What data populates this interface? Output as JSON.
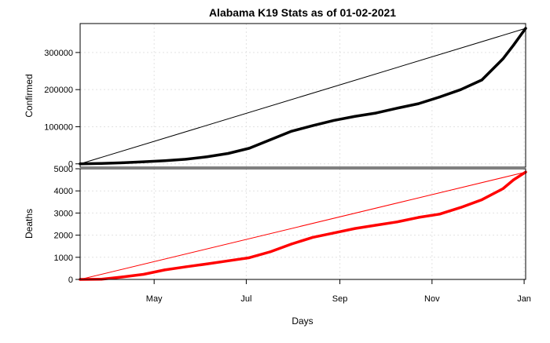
{
  "chart_data": {
    "title": "Alabama K19 Stats as of 01-02-2021",
    "xlabel": "Days",
    "x_tick_labels": [
      "May",
      "Jul",
      "Sep",
      "Nov",
      "Jan"
    ],
    "x_tick_dates": [
      "2020-05-01",
      "2020-07-01",
      "2020-09-01",
      "2020-11-01",
      "2021-01-01"
    ],
    "x_range": [
      "2020-03-13",
      "2021-01-02"
    ],
    "grid": "dotted, light gray",
    "panels": [
      {
        "type": "line",
        "ylabel": "Confirmed",
        "ylim": [
          -9000,
          378000
        ],
        "y_ticks": [
          0,
          100000,
          200000,
          300000
        ],
        "y_tick_labels": [
          "0",
          "100000",
          "200000",
          "300000"
        ],
        "series": [
          {
            "color": "#000000",
            "x": [
              "2020-03-13",
              "2020-03-27",
              "2020-04-10",
              "2020-04-24",
              "2020-05-08",
              "2020-05-22",
              "2020-06-05",
              "2020-06-19",
              "2020-07-03",
              "2020-07-17",
              "2020-07-31",
              "2020-08-14",
              "2020-08-28",
              "2020-09-11",
              "2020-09-25",
              "2020-10-09",
              "2020-10-23",
              "2020-11-06",
              "2020-11-20",
              "2020-12-04",
              "2020-12-18",
              "2020-12-25",
              "2021-01-02"
            ],
            "y": [
              0,
              1000,
              3000,
              5500,
              8500,
              12500,
              19000,
              28000,
              42000,
              65000,
              88000,
              103000,
              117000,
              128000,
              137000,
              150000,
              162000,
              180000,
              200000,
              226000,
              283000,
              320000,
              365000
            ]
          }
        ],
        "reference_line": {
          "color": "#000000",
          "from": 0,
          "to": 365000
        }
      },
      {
        "type": "line",
        "ylabel": "Deaths",
        "ylim": [
          0,
          5000
        ],
        "y_ticks": [
          0,
          1000,
          2000,
          3000,
          4000,
          5000
        ],
        "y_tick_labels": [
          "0",
          "1000",
          "2000",
          "3000",
          "4000",
          "5000"
        ],
        "series": [
          {
            "color": "#ff0000",
            "x": [
              "2020-03-13",
              "2020-03-27",
              "2020-04-10",
              "2020-04-24",
              "2020-05-08",
              "2020-05-22",
              "2020-06-05",
              "2020-06-19",
              "2020-07-03",
              "2020-07-17",
              "2020-07-31",
              "2020-08-14",
              "2020-08-28",
              "2020-09-11",
              "2020-09-25",
              "2020-10-09",
              "2020-10-23",
              "2020-11-06",
              "2020-11-20",
              "2020-12-04",
              "2020-12-18",
              "2020-12-25",
              "2021-01-02"
            ],
            "y": [
              0,
              10,
              110,
              230,
              430,
              570,
              700,
              840,
              980,
              1250,
              1600,
              1900,
              2100,
              2300,
              2450,
              2600,
              2800,
              2950,
              3250,
              3600,
              4100,
              4500,
              4850
            ]
          }
        ],
        "reference_line": {
          "color": "#ff0000",
          "from": 0,
          "to": 4850
        }
      }
    ]
  }
}
